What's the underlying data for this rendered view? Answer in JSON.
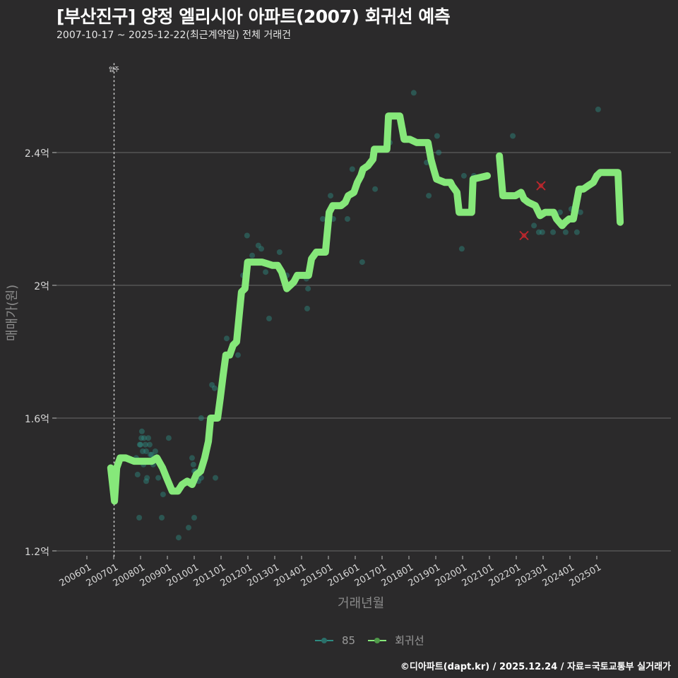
{
  "header": {
    "title": "[부산진구] 양정 엘리시아 아파트(2007) 회귀선 예측",
    "subtitle": "2007-10-17 ~ 2025-12-22(최근계약일) 전체 거래건"
  },
  "footer": {
    "credit": "©디아파트(dapt.kr) / 2025.12.24 / 자료=국토교통부 실거래가"
  },
  "colors": {
    "background": "#2b2a2b",
    "gridline": "#5e5e5e",
    "regression_line": "#86e87a",
    "scatter_85": "#2e8b82",
    "outlier": "#c0272d",
    "move_in_line": "#cfcfcf"
  },
  "chart_data": {
    "type": "line",
    "title": "[부산진구] 양정 엘리시아 아파트(2007) 회귀선 예측",
    "subtitle": "2007-10-17 ~ 2025-12-22(최근계약일) 전체 거래건",
    "xlabel": "거래년월",
    "ylabel": "매매가(원)",
    "ylim": [
      1.2,
      2.68
    ],
    "yticks": [
      {
        "value": 1.2,
        "label": "1.2억"
      },
      {
        "value": 1.6,
        "label": "1.6억"
      },
      {
        "value": 2.0,
        "label": "2억"
      },
      {
        "value": 2.4,
        "label": "2.4억"
      }
    ],
    "xticks": [
      "200601",
      "200701",
      "200801",
      "200901",
      "201001",
      "201101",
      "201201",
      "201301",
      "201401",
      "201501",
      "201601",
      "201701",
      "201801",
      "201901",
      "202001",
      "202101",
      "202201",
      "202301",
      "202401",
      "202501"
    ],
    "grid": {
      "horizontal": true,
      "vertical": false
    },
    "legend": {
      "position": "bottom",
      "entries": [
        "85",
        "회귀선"
      ]
    },
    "annotations": [
      {
        "type": "vline",
        "x": 2007.0,
        "label": "입주",
        "style": "dotted"
      }
    ],
    "series": [
      {
        "name": "회귀선",
        "type": "line",
        "segments": [
          [
            [
              2006.89,
              1.45
            ],
            [
              2007.03,
              1.35
            ],
            [
              2007.11,
              1.45
            ],
            [
              2007.24,
              1.48
            ],
            [
              2007.45,
              1.48
            ],
            [
              2007.76,
              1.47
            ],
            [
              2008.03,
              1.47
            ],
            [
              2008.42,
              1.47
            ],
            [
              2008.61,
              1.48
            ],
            [
              2008.82,
              1.45
            ],
            [
              2008.97,
              1.42
            ],
            [
              2009.18,
              1.38
            ],
            [
              2009.39,
              1.38
            ],
            [
              2009.55,
              1.4
            ],
            [
              2009.74,
              1.41
            ],
            [
              2009.92,
              1.4
            ],
            [
              2010.08,
              1.43
            ],
            [
              2010.24,
              1.44
            ],
            [
              2010.39,
              1.48
            ],
            [
              2010.53,
              1.53
            ],
            [
              2010.61,
              1.6
            ],
            [
              2010.87,
              1.6
            ],
            [
              2010.97,
              1.66
            ],
            [
              2011.08,
              1.73
            ],
            [
              2011.18,
              1.79
            ],
            [
              2011.32,
              1.79
            ],
            [
              2011.45,
              1.82
            ],
            [
              2011.58,
              1.83
            ],
            [
              2011.76,
              1.98
            ],
            [
              2011.89,
              1.99
            ],
            [
              2011.99,
              2.07
            ],
            [
              2012.16,
              2.07
            ],
            [
              2012.53,
              2.07
            ],
            [
              2012.92,
              2.06
            ],
            [
              2013.11,
              2.06
            ],
            [
              2013.26,
              2.04
            ],
            [
              2013.45,
              1.99
            ],
            [
              2013.58,
              2.0
            ],
            [
              2013.71,
              2.01
            ],
            [
              2013.84,
              2.03
            ],
            [
              2014.11,
              2.03
            ],
            [
              2014.26,
              2.03
            ],
            [
              2014.37,
              2.08
            ],
            [
              2014.55,
              2.1
            ],
            [
              2014.89,
              2.1
            ],
            [
              2015.03,
              2.22
            ],
            [
              2015.16,
              2.24
            ],
            [
              2015.47,
              2.24
            ],
            [
              2015.63,
              2.25
            ],
            [
              2015.74,
              2.27
            ],
            [
              2015.95,
              2.28
            ],
            [
              2016.08,
              2.31
            ],
            [
              2016.21,
              2.33
            ],
            [
              2016.29,
              2.35
            ],
            [
              2016.47,
              2.36
            ],
            [
              2016.66,
              2.38
            ],
            [
              2016.71,
              2.41
            ],
            [
              2017.18,
              2.41
            ],
            [
              2017.24,
              2.51
            ],
            [
              2017.66,
              2.51
            ],
            [
              2017.82,
              2.44
            ],
            [
              2018.03,
              2.44
            ],
            [
              2018.29,
              2.43
            ],
            [
              2018.71,
              2.43
            ],
            [
              2018.82,
              2.38
            ],
            [
              2018.92,
              2.35
            ],
            [
              2019.03,
              2.32
            ],
            [
              2019.34,
              2.31
            ],
            [
              2019.55,
              2.31
            ],
            [
              2019.61,
              2.3
            ],
            [
              2019.79,
              2.28
            ],
            [
              2019.87,
              2.22
            ],
            [
              2020.34,
              2.22
            ],
            [
              2020.39,
              2.32
            ],
            [
              2020.92,
              2.33
            ]
          ],
          [
            [
              2021.37,
              2.39
            ],
            [
              2021.5,
              2.27
            ],
            [
              2021.97,
              2.27
            ],
            [
              2022.18,
              2.28
            ],
            [
              2022.29,
              2.26
            ],
            [
              2022.45,
              2.25
            ],
            [
              2022.71,
              2.24
            ],
            [
              2022.89,
              2.21
            ],
            [
              2023.08,
              2.22
            ],
            [
              2023.21,
              2.22
            ],
            [
              2023.39,
              2.22
            ],
            [
              2023.5,
              2.2
            ],
            [
              2023.71,
              2.18
            ],
            [
              2023.82,
              2.19
            ],
            [
              2023.97,
              2.2
            ],
            [
              2024.13,
              2.2
            ],
            [
              2024.34,
              2.29
            ],
            [
              2024.5,
              2.29
            ],
            [
              2024.68,
              2.3
            ],
            [
              2024.87,
              2.31
            ],
            [
              2025.0,
              2.33
            ],
            [
              2025.13,
              2.34
            ],
            [
              2025.45,
              2.34
            ],
            [
              2025.79,
              2.34
            ],
            [
              2025.87,
              2.19
            ]
          ]
        ]
      },
      {
        "name": "85",
        "type": "scatter",
        "points": [
          [
            2007.84,
            1.48
          ],
          [
            2007.89,
            1.43
          ],
          [
            2007.97,
            1.52
          ],
          [
            2008.0,
            1.52
          ],
          [
            2008.03,
            1.54
          ],
          [
            2008.05,
            1.56
          ],
          [
            2008.08,
            1.5
          ],
          [
            2008.11,
            1.46
          ],
          [
            2008.13,
            1.54
          ],
          [
            2008.18,
            1.52
          ],
          [
            2008.21,
            1.5
          ],
          [
            2008.24,
            1.42
          ],
          [
            2008.29,
            1.54
          ],
          [
            2008.34,
            1.52
          ],
          [
            2008.37,
            1.49
          ],
          [
            2008.42,
            1.49
          ],
          [
            2008.47,
            1.46
          ],
          [
            2008.55,
            1.5
          ],
          [
            2008.66,
            1.42
          ],
          [
            2008.84,
            1.37
          ],
          [
            2008.21,
            1.41
          ],
          [
            2007.95,
            1.3
          ],
          [
            2008.79,
            1.3
          ],
          [
            2009.05,
            1.54
          ],
          [
            2009.42,
            1.24
          ],
          [
            2009.79,
            1.27
          ],
          [
            2009.87,
            1.41
          ],
          [
            2010.0,
            1.44
          ],
          [
            2010.05,
            1.44
          ],
          [
            2010.16,
            1.41
          ],
          [
            2010.26,
            1.42
          ],
          [
            2009.92,
            1.48
          ],
          [
            2009.97,
            1.46
          ],
          [
            2010.0,
            1.3
          ],
          [
            2010.26,
            1.6
          ],
          [
            2010.79,
            1.42
          ],
          [
            2010.76,
            1.69
          ],
          [
            2010.66,
            1.7
          ],
          [
            2011.21,
            1.84
          ],
          [
            2011.63,
            1.79
          ],
          [
            2011.82,
            2.03
          ],
          [
            2011.97,
            2.15
          ],
          [
            2012.16,
            2.09
          ],
          [
            2012.39,
            2.12
          ],
          [
            2012.5,
            2.11
          ],
          [
            2012.66,
            2.04
          ],
          [
            2012.79,
            1.9
          ],
          [
            2013.18,
            2.1
          ],
          [
            2013.45,
            2.03
          ],
          [
            2014.18,
            2.02
          ],
          [
            2014.24,
            1.99
          ],
          [
            2014.21,
            1.93
          ],
          [
            2014.79,
            2.2
          ],
          [
            2015.08,
            2.27
          ],
          [
            2015.18,
            2.2
          ],
          [
            2015.71,
            2.2
          ],
          [
            2015.89,
            2.35
          ],
          [
            2016.26,
            2.07
          ],
          [
            2016.74,
            2.29
          ],
          [
            2017.29,
            2.43
          ],
          [
            2017.79,
            2.47
          ],
          [
            2018.18,
            2.58
          ],
          [
            2018.66,
            2.37
          ],
          [
            2018.74,
            2.27
          ],
          [
            2019.05,
            2.45
          ],
          [
            2019.11,
            2.4
          ],
          [
            2019.74,
            2.29
          ],
          [
            2019.97,
            2.11
          ],
          [
            2020.05,
            2.33
          ],
          [
            2020.42,
            2.33
          ],
          [
            2021.87,
            2.45
          ],
          [
            2022.66,
            2.18
          ],
          [
            2022.84,
            2.16
          ],
          [
            2022.97,
            2.16
          ],
          [
            2023.37,
            2.16
          ],
          [
            2023.63,
            2.22
          ],
          [
            2023.84,
            2.16
          ],
          [
            2024.05,
            2.23
          ],
          [
            2024.26,
            2.16
          ],
          [
            2024.39,
            2.22
          ],
          [
            2025.05,
            2.53
          ]
        ]
      },
      {
        "name": "이상치",
        "type": "scatter",
        "marker": "x",
        "points": [
          [
            2022.29,
            2.15
          ],
          [
            2022.92,
            2.3
          ]
        ]
      }
    ]
  },
  "axis": {
    "ylabel": "매매가(원)",
    "xlabel": "거래년월",
    "yticks": [
      "2.4억",
      "2억",
      "1.6억",
      "1.2억"
    ],
    "xticks": [
      "200601",
      "200701",
      "200801",
      "200901",
      "201001",
      "201101",
      "201201",
      "201301",
      "201401",
      "201501",
      "201601",
      "201701",
      "201801",
      "201901",
      "202001",
      "202101",
      "202201",
      "202301",
      "202401",
      "202501"
    ],
    "move_in_label": "입주"
  },
  "legend": {
    "items": [
      {
        "label": "85",
        "color": "#2e8b82"
      },
      {
        "label": "회귀선",
        "color": "#86e87a"
      }
    ]
  }
}
